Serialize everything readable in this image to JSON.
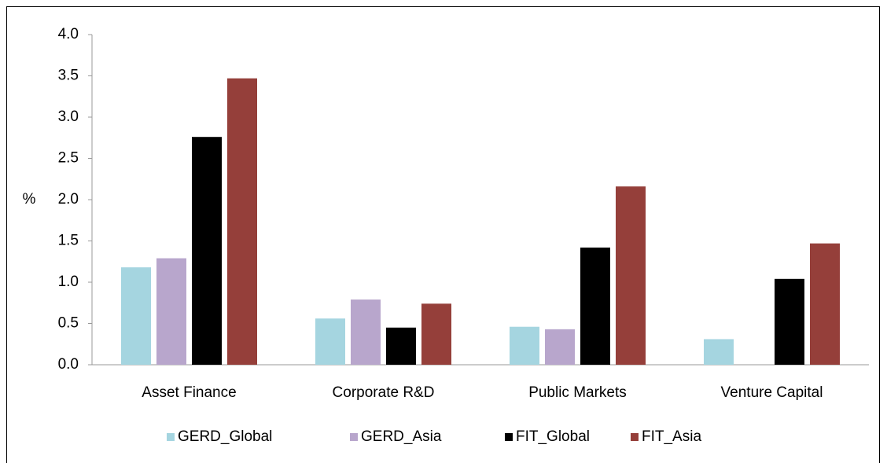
{
  "chart_data": {
    "type": "bar",
    "y_label": "%",
    "categories": [
      "Asset Finance",
      "Corporate R&D",
      "Public Markets",
      "Venture Capital"
    ],
    "series": [
      {
        "name": "GERD_Global",
        "color": "#a5d5e0",
        "values": [
          1.18,
          0.56,
          0.46,
          0.31
        ]
      },
      {
        "name": "GERD_Asia",
        "color": "#b8a6cc",
        "values": [
          1.29,
          0.79,
          0.43,
          null
        ]
      },
      {
        "name": "FIT_Global",
        "color": "#000000",
        "values": [
          2.76,
          0.45,
          1.42,
          1.04
        ]
      },
      {
        "name": "FIT_Asia",
        "color": "#953f3a",
        "values": [
          3.47,
          0.74,
          2.16,
          1.47
        ]
      }
    ],
    "ylim": [
      0,
      4
    ],
    "yticks": [
      {
        "value": 0,
        "label": "0.0"
      },
      {
        "value": 0.5,
        "label": "0.5"
      },
      {
        "value": 1,
        "label": "1.0"
      },
      {
        "value": 1.5,
        "label": "1.5"
      },
      {
        "value": 2,
        "label": "2.0"
      },
      {
        "value": 2.5,
        "label": "2.5"
      },
      {
        "value": 3,
        "label": "3.0"
      },
      {
        "value": 3.5,
        "label": "3.5"
      },
      {
        "value": 4,
        "label": "4.0"
      }
    ],
    "legend": "bottom"
  }
}
